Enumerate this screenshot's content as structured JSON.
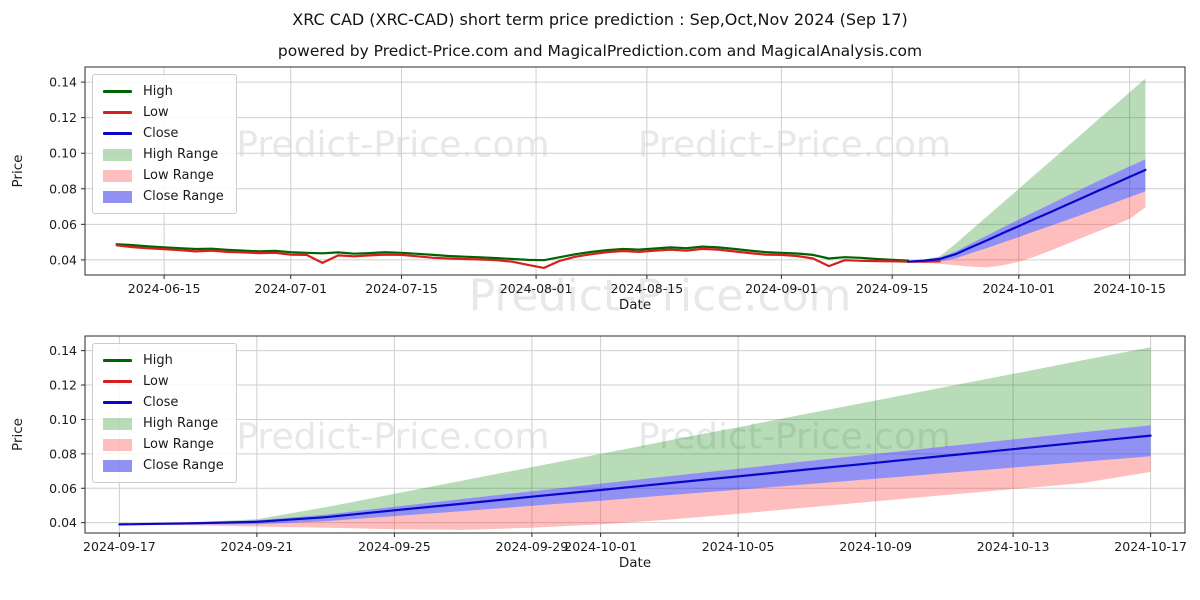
{
  "header": {
    "title": "XRC CAD (XRC-CAD) short term price prediction : Sep,Oct,Nov 2024 (Sep 17)",
    "subtitle": "powered by Predict-Price.com and MagicalPrediction.com and MagicalAnalysis.com"
  },
  "watermark": {
    "text": "Predict-Price.com",
    "color": "#e8e8e8"
  },
  "colors": {
    "high_line": "#006400",
    "low_line": "#d62020",
    "close_line": "#0808c8",
    "high_range_fill": "rgba(0,128,0,0.28)",
    "low_range_fill": "rgba(255,40,40,0.30)",
    "close_range_fill": "rgba(25,25,230,0.48)",
    "grid": "#cfcfcf",
    "axis": "#2a2a2a",
    "tick_text": "#1c1c1c"
  },
  "chart_data": [
    {
      "type": "line",
      "xlabel": "Date",
      "ylabel": "Price",
      "ylim": [
        0.0315,
        0.1485
      ],
      "xdomain": [
        "2024-06-05",
        "2024-10-22"
      ],
      "xticks": [
        "2024-06-15",
        "2024-07-01",
        "2024-07-15",
        "2024-08-01",
        "2024-08-15",
        "2024-09-01",
        "2024-09-15",
        "2024-10-01",
        "2024-10-15"
      ],
      "yticks": [
        0.04,
        0.06,
        0.08,
        0.1,
        0.12,
        0.14
      ],
      "ytick_labels": [
        "0.04",
        "0.06",
        "0.08",
        "0.10",
        "0.12",
        "0.14"
      ],
      "grid": true,
      "legend_position": "upper-left",
      "legend": [
        {
          "label": "High",
          "swatch": "line",
          "color": "#006400"
        },
        {
          "label": "Low",
          "swatch": "line",
          "color": "#d62020"
        },
        {
          "label": "Close",
          "swatch": "line",
          "color": "#0808c8"
        },
        {
          "label": "High Range",
          "swatch": "patch",
          "color": "rgba(0,128,0,0.28)"
        },
        {
          "label": "Low Range",
          "swatch": "patch",
          "color": "rgba(255,40,40,0.30)"
        },
        {
          "label": "Close Range",
          "swatch": "patch",
          "color": "rgba(25,25,230,0.48)"
        }
      ],
      "bands": [
        {
          "name": "High Range",
          "color": "rgba(0,128,0,0.28)",
          "dates": [
            "2024-09-17",
            "2024-09-19",
            "2024-09-21",
            "2024-09-23",
            "2024-09-25",
            "2024-09-27",
            "2024-09-29",
            "2024-10-01",
            "2024-10-03",
            "2024-10-05",
            "2024-10-07",
            "2024-10-09",
            "2024-10-11",
            "2024-10-13",
            "2024-10-15",
            "2024-10-17"
          ],
          "upper": [
            0.039,
            0.0401,
            0.042,
            0.049,
            0.0568,
            0.0645,
            0.0723,
            0.08,
            0.0878,
            0.0955,
            0.1033,
            0.111,
            0.1188,
            0.1265,
            0.1343,
            0.142
          ],
          "lower": [
            0.039,
            0.04,
            0.0414,
            0.0447,
            0.0493,
            0.0538,
            0.0583,
            0.0627,
            0.0671,
            0.0714,
            0.0758,
            0.08,
            0.0843,
            0.0884,
            0.0926,
            0.0966
          ]
        },
        {
          "name": "Low Range",
          "color": "rgba(255,40,40,0.30)",
          "dates": [
            "2024-09-17",
            "2024-09-19",
            "2024-09-21",
            "2024-09-23",
            "2024-09-25",
            "2024-09-27",
            "2024-09-29",
            "2024-10-01",
            "2024-10-03",
            "2024-10-05",
            "2024-10-07",
            "2024-10-09",
            "2024-10-11",
            "2024-10-13",
            "2024-10-15",
            "2024-10-17"
          ],
          "upper": [
            0.039,
            0.039,
            0.0391,
            0.0408,
            0.0438,
            0.0467,
            0.0498,
            0.0528,
            0.056,
            0.0591,
            0.0623,
            0.0655,
            0.0688,
            0.072,
            0.0753,
            0.0786
          ],
          "lower": [
            0.039,
            0.0385,
            0.0378,
            0.037,
            0.0362,
            0.0358,
            0.037,
            0.039,
            0.0418,
            0.0452,
            0.0488,
            0.0524,
            0.056,
            0.0595,
            0.063,
            0.0695
          ]
        },
        {
          "name": "Close Range",
          "color": "rgba(25,25,230,0.48)",
          "dates": [
            "2024-09-17",
            "2024-09-19",
            "2024-09-21",
            "2024-09-23",
            "2024-09-25",
            "2024-09-27",
            "2024-09-29",
            "2024-10-01",
            "2024-10-03",
            "2024-10-05",
            "2024-10-07",
            "2024-10-09",
            "2024-10-11",
            "2024-10-13",
            "2024-10-15",
            "2024-10-17"
          ],
          "upper": [
            0.039,
            0.04,
            0.0414,
            0.0447,
            0.0493,
            0.0538,
            0.0583,
            0.0627,
            0.0671,
            0.0714,
            0.0758,
            0.08,
            0.0843,
            0.0884,
            0.0926,
            0.0966
          ],
          "lower": [
            0.039,
            0.039,
            0.0391,
            0.0408,
            0.0438,
            0.0467,
            0.0498,
            0.0528,
            0.056,
            0.0591,
            0.0623,
            0.0655,
            0.0688,
            0.072,
            0.0753,
            0.0786
          ]
        }
      ],
      "series": [
        {
          "name": "High",
          "color": "#006400",
          "dates": [
            "2024-06-09",
            "2024-06-11",
            "2024-06-13",
            "2024-06-15",
            "2024-06-17",
            "2024-06-19",
            "2024-06-21",
            "2024-06-23",
            "2024-06-25",
            "2024-06-27",
            "2024-06-29",
            "2024-07-01",
            "2024-07-03",
            "2024-07-05",
            "2024-07-07",
            "2024-07-09",
            "2024-07-11",
            "2024-07-13",
            "2024-07-15",
            "2024-07-17",
            "2024-07-19",
            "2024-07-21",
            "2024-07-23",
            "2024-07-25",
            "2024-07-27",
            "2024-07-29",
            "2024-07-31",
            "2024-08-02",
            "2024-08-04",
            "2024-08-06",
            "2024-08-08",
            "2024-08-10",
            "2024-08-12",
            "2024-08-14",
            "2024-08-16",
            "2024-08-18",
            "2024-08-20",
            "2024-08-22",
            "2024-08-24",
            "2024-08-26",
            "2024-08-28",
            "2024-08-30",
            "2024-09-01",
            "2024-09-03",
            "2024-09-05",
            "2024-09-07",
            "2024-09-09",
            "2024-09-11",
            "2024-09-13",
            "2024-09-15",
            "2024-09-17"
          ],
          "values": [
            0.0488,
            0.0483,
            0.0476,
            0.047,
            0.0466,
            0.0461,
            0.0463,
            0.0457,
            0.0452,
            0.0448,
            0.0451,
            0.0443,
            0.044,
            0.0437,
            0.0442,
            0.0435,
            0.0438,
            0.0443,
            0.044,
            0.0434,
            0.0428,
            0.0422,
            0.0418,
            0.0414,
            0.041,
            0.0405,
            0.04,
            0.0398,
            0.0415,
            0.0432,
            0.0445,
            0.0455,
            0.0461,
            0.0458,
            0.0464,
            0.047,
            0.0466,
            0.0475,
            0.047,
            0.0462,
            0.0452,
            0.0444,
            0.044,
            0.0436,
            0.0428,
            0.0408,
            0.0415,
            0.0412,
            0.0405,
            0.04,
            0.0396
          ]
        },
        {
          "name": "Low",
          "color": "#d62020",
          "dates": [
            "2024-06-09",
            "2024-06-11",
            "2024-06-13",
            "2024-06-15",
            "2024-06-17",
            "2024-06-19",
            "2024-06-21",
            "2024-06-23",
            "2024-06-25",
            "2024-06-27",
            "2024-06-29",
            "2024-07-01",
            "2024-07-03",
            "2024-07-05",
            "2024-07-07",
            "2024-07-09",
            "2024-07-11",
            "2024-07-13",
            "2024-07-15",
            "2024-07-17",
            "2024-07-19",
            "2024-07-21",
            "2024-07-23",
            "2024-07-25",
            "2024-07-27",
            "2024-07-29",
            "2024-07-31",
            "2024-08-02",
            "2024-08-04",
            "2024-08-06",
            "2024-08-08",
            "2024-08-10",
            "2024-08-12",
            "2024-08-14",
            "2024-08-16",
            "2024-08-18",
            "2024-08-20",
            "2024-08-22",
            "2024-08-24",
            "2024-08-26",
            "2024-08-28",
            "2024-08-30",
            "2024-09-01",
            "2024-09-03",
            "2024-09-05",
            "2024-09-07",
            "2024-09-09",
            "2024-09-11",
            "2024-09-13",
            "2024-09-15",
            "2024-09-17",
            "2024-09-19",
            "2024-09-21"
          ],
          "values": [
            0.0482,
            0.0472,
            0.0465,
            0.046,
            0.0455,
            0.0448,
            0.0452,
            0.0445,
            0.0442,
            0.0438,
            0.044,
            0.043,
            0.0428,
            0.0383,
            0.0425,
            0.042,
            0.0425,
            0.043,
            0.0428,
            0.042,
            0.0412,
            0.0408,
            0.0405,
            0.0402,
            0.0398,
            0.039,
            0.0372,
            0.0355,
            0.0395,
            0.0418,
            0.0432,
            0.0444,
            0.045,
            0.0445,
            0.0452,
            0.0458,
            0.0452,
            0.0462,
            0.0458,
            0.0448,
            0.0438,
            0.043,
            0.0428,
            0.0422,
            0.0408,
            0.0365,
            0.0398,
            0.0395,
            0.0393,
            0.0392,
            0.039,
            0.039,
            0.0392
          ]
        },
        {
          "name": "Close",
          "color": "#0808c8",
          "dates": [
            "2024-09-17",
            "2024-09-19",
            "2024-09-21",
            "2024-09-23",
            "2024-09-25",
            "2024-09-27",
            "2024-09-29",
            "2024-10-01",
            "2024-10-03",
            "2024-10-05",
            "2024-10-07",
            "2024-10-09",
            "2024-10-11",
            "2024-10-13",
            "2024-10-15",
            "2024-10-17"
          ],
          "values": [
            0.039,
            0.0396,
            0.0405,
            0.0432,
            0.0472,
            0.0511,
            0.0551,
            0.059,
            0.063,
            0.0669,
            0.0709,
            0.0748,
            0.0788,
            0.0827,
            0.0867,
            0.0906
          ]
        }
      ]
    },
    {
      "type": "line",
      "xlabel": "Date",
      "ylabel": "Price",
      "ylim": [
        0.034,
        0.1485
      ],
      "xdomain": [
        "2024-09-16",
        "2024-10-18"
      ],
      "xticks": [
        "2024-09-17",
        "2024-09-21",
        "2024-09-25",
        "2024-09-29",
        "2024-10-01",
        "2024-10-05",
        "2024-10-09",
        "2024-10-13",
        "2024-10-17"
      ],
      "yticks": [
        0.04,
        0.06,
        0.08,
        0.1,
        0.12,
        0.14
      ],
      "ytick_labels": [
        "0.04",
        "0.06",
        "0.08",
        "0.10",
        "0.12",
        "0.14"
      ],
      "grid": true,
      "legend_position": "upper-left",
      "legend": [
        {
          "label": "High",
          "swatch": "line",
          "color": "#006400"
        },
        {
          "label": "Low",
          "swatch": "line",
          "color": "#d62020"
        },
        {
          "label": "Close",
          "swatch": "line",
          "color": "#0808c8"
        },
        {
          "label": "High Range",
          "swatch": "patch",
          "color": "rgba(0,128,0,0.28)"
        },
        {
          "label": "Low Range",
          "swatch": "patch",
          "color": "rgba(255,40,40,0.30)"
        },
        {
          "label": "Close Range",
          "swatch": "patch",
          "color": "rgba(25,25,230,0.48)"
        }
      ],
      "bands": [
        {
          "name": "High Range",
          "color": "rgba(0,128,0,0.28)",
          "dates": [
            "2024-09-17",
            "2024-09-19",
            "2024-09-21",
            "2024-09-23",
            "2024-09-25",
            "2024-09-27",
            "2024-09-29",
            "2024-10-01",
            "2024-10-03",
            "2024-10-05",
            "2024-10-07",
            "2024-10-09",
            "2024-10-11",
            "2024-10-13",
            "2024-10-15",
            "2024-10-17"
          ],
          "upper": [
            0.039,
            0.0401,
            0.042,
            0.049,
            0.0568,
            0.0645,
            0.0723,
            0.08,
            0.0878,
            0.0955,
            0.1033,
            0.111,
            0.1188,
            0.1265,
            0.1343,
            0.142
          ],
          "lower": [
            0.039,
            0.04,
            0.0414,
            0.0447,
            0.0493,
            0.0538,
            0.0583,
            0.0627,
            0.0671,
            0.0714,
            0.0758,
            0.08,
            0.0843,
            0.0884,
            0.0926,
            0.0966
          ]
        },
        {
          "name": "Low Range",
          "color": "rgba(255,40,40,0.30)",
          "dates": [
            "2024-09-17",
            "2024-09-19",
            "2024-09-21",
            "2024-09-23",
            "2024-09-25",
            "2024-09-27",
            "2024-09-29",
            "2024-10-01",
            "2024-10-03",
            "2024-10-05",
            "2024-10-07",
            "2024-10-09",
            "2024-10-11",
            "2024-10-13",
            "2024-10-15",
            "2024-10-17"
          ],
          "upper": [
            0.039,
            0.039,
            0.0391,
            0.0408,
            0.0438,
            0.0467,
            0.0498,
            0.0528,
            0.056,
            0.0591,
            0.0623,
            0.0655,
            0.0688,
            0.072,
            0.0753,
            0.0786
          ],
          "lower": [
            0.039,
            0.0385,
            0.0378,
            0.037,
            0.0362,
            0.0358,
            0.037,
            0.039,
            0.0418,
            0.0452,
            0.0488,
            0.0524,
            0.056,
            0.0595,
            0.063,
            0.0695
          ]
        },
        {
          "name": "Close Range",
          "color": "rgba(25,25,230,0.48)",
          "dates": [
            "2024-09-17",
            "2024-09-19",
            "2024-09-21",
            "2024-09-23",
            "2024-09-25",
            "2024-09-27",
            "2024-09-29",
            "2024-10-01",
            "2024-10-03",
            "2024-10-05",
            "2024-10-07",
            "2024-10-09",
            "2024-10-11",
            "2024-10-13",
            "2024-10-15",
            "2024-10-17"
          ],
          "upper": [
            0.039,
            0.04,
            0.0414,
            0.0447,
            0.0493,
            0.0538,
            0.0583,
            0.0627,
            0.0671,
            0.0714,
            0.0758,
            0.08,
            0.0843,
            0.0884,
            0.0926,
            0.0966
          ],
          "lower": [
            0.039,
            0.039,
            0.0391,
            0.0408,
            0.0438,
            0.0467,
            0.0498,
            0.0528,
            0.056,
            0.0591,
            0.0623,
            0.0655,
            0.0688,
            0.072,
            0.0753,
            0.0786
          ]
        }
      ],
      "series": [
        {
          "name": "Close",
          "color": "#0808c8",
          "dates": [
            "2024-09-17",
            "2024-09-19",
            "2024-09-21",
            "2024-09-23",
            "2024-09-25",
            "2024-09-27",
            "2024-09-29",
            "2024-10-01",
            "2024-10-03",
            "2024-10-05",
            "2024-10-07",
            "2024-10-09",
            "2024-10-11",
            "2024-10-13",
            "2024-10-15",
            "2024-10-17"
          ],
          "values": [
            0.039,
            0.0396,
            0.0405,
            0.0432,
            0.0472,
            0.0511,
            0.0551,
            0.059,
            0.063,
            0.0669,
            0.0709,
            0.0748,
            0.0788,
            0.0827,
            0.0867,
            0.0906
          ]
        }
      ]
    }
  ]
}
